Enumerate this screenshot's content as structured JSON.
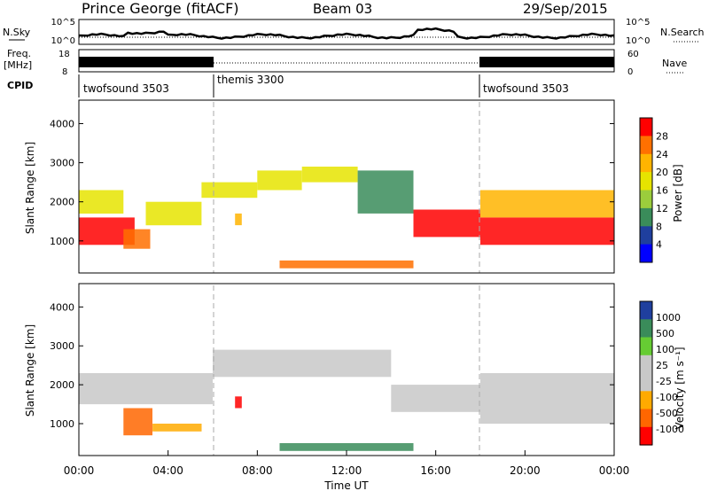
{
  "header": {
    "station": "Prince George (fitACF)",
    "beam": "Beam 03",
    "date": "29/Sep/2015"
  },
  "strips": {
    "nsky_label": "N.Sky",
    "nsky_ticks": [
      "10^5",
      "10^0"
    ],
    "nsearch_label": "N.Search",
    "nsearch_ticks": [
      "10^5",
      "10^0"
    ],
    "freq_label": "Freq.",
    "freq_unit": "[MHz]",
    "freq_ticks": [
      "18",
      "8"
    ],
    "nave_label": "Nave",
    "nave_ticks": [
      "60",
      "0"
    ],
    "cpid_label": "CPID",
    "cpid_modes": [
      {
        "name": "twofsound 3503",
        "start_hour": 0,
        "end_hour": 6
      },
      {
        "name": "themis 3300",
        "start_hour": 6,
        "end_hour": 18
      },
      {
        "name": "twofsound 3503",
        "start_hour": 18,
        "end_hour": 24
      }
    ]
  },
  "chart_data": [
    {
      "type": "heatmap",
      "panel": "power",
      "ylabel": "Slant Range [km]",
      "ylim": [
        180,
        4600
      ],
      "yticks": [
        "1000",
        "2000",
        "3000",
        "4000"
      ],
      "colorbar_label": "Power [dB]",
      "colorbar_ticks": [
        "28",
        "24",
        "20",
        "16",
        "12",
        "8",
        "4"
      ],
      "colorbar_colors": [
        "#ff0000",
        "#ff7000",
        "#ffb400",
        "#e6e400",
        "#9bcd3c",
        "#3a8c5a",
        "#1f3f9e",
        "#0000ff"
      ],
      "echo_bands": [
        {
          "from_hour": 0.0,
          "to_hour": 2.5,
          "range_low_km": 900,
          "range_high_km": 1600,
          "power_db": 28
        },
        {
          "from_hour": 0.0,
          "to_hour": 2.0,
          "range_low_km": 1700,
          "range_high_km": 2300,
          "power_db": 16
        },
        {
          "from_hour": 2.0,
          "to_hour": 3.2,
          "range_low_km": 800,
          "range_high_km": 1300,
          "power_db": 26
        },
        {
          "from_hour": 3.0,
          "to_hour": 5.5,
          "range_low_km": 1400,
          "range_high_km": 2000,
          "power_db": 18
        },
        {
          "from_hour": 5.5,
          "to_hour": 8.0,
          "range_low_km": 2100,
          "range_high_km": 2500,
          "power_db": 18
        },
        {
          "from_hour": 8.0,
          "to_hour": 10.0,
          "range_low_km": 2300,
          "range_high_km": 2800,
          "power_db": 18
        },
        {
          "from_hour": 10.0,
          "to_hour": 12.5,
          "range_low_km": 2500,
          "range_high_km": 2900,
          "power_db": 16
        },
        {
          "from_hour": 12.5,
          "to_hour": 15.0,
          "range_low_km": 1700,
          "range_high_km": 2800,
          "power_db": 10
        },
        {
          "from_hour": 15.0,
          "to_hour": 18.0,
          "range_low_km": 1100,
          "range_high_km": 1800,
          "power_db": 28
        },
        {
          "from_hour": 18.0,
          "to_hour": 24.0,
          "range_low_km": 900,
          "range_high_km": 1600,
          "power_db": 28
        },
        {
          "from_hour": 18.0,
          "to_hour": 24.0,
          "range_low_km": 1600,
          "range_high_km": 2300,
          "power_db": 20
        },
        {
          "from_hour": 7.0,
          "to_hour": 7.3,
          "range_low_km": 1400,
          "range_high_km": 1700,
          "power_db": 22
        },
        {
          "from_hour": 9.0,
          "to_hour": 15.0,
          "range_low_km": 300,
          "range_high_km": 500,
          "power_db": 24
        }
      ]
    },
    {
      "type": "heatmap",
      "panel": "velocity",
      "ylabel": "Slant Range [km]",
      "ylim": [
        180,
        4600
      ],
      "yticks": [
        "1000",
        "2000",
        "3000",
        "4000"
      ],
      "xlabel": "Time UT",
      "xlim": [
        0,
        24
      ],
      "xticks": [
        "00:00",
        "04:00",
        "08:00",
        "12:00",
        "16:00",
        "20:00",
        "00:00"
      ],
      "colorbar_label": "Velocity [m s⁻¹]",
      "colorbar_ticks": [
        "1000",
        "500",
        "100",
        "25",
        "-25",
        "-100",
        "-500",
        "-1000"
      ],
      "colorbar_colors": [
        "#1f3f9e",
        "#3a8c5a",
        "#66cc33",
        "#c8c8c8",
        "#c8c8c8",
        "#ffaa00",
        "#ff6600",
        "#ff0000"
      ],
      "echo_bands": [
        {
          "from_hour": 0.0,
          "to_hour": 6.0,
          "range_low_km": 1500,
          "range_high_km": 2300,
          "velocity": 0
        },
        {
          "from_hour": 2.0,
          "to_hour": 3.3,
          "range_low_km": 700,
          "range_high_km": 1400,
          "velocity": -500
        },
        {
          "from_hour": 3.3,
          "to_hour": 5.5,
          "range_low_km": 800,
          "range_high_km": 1000,
          "velocity": -100
        },
        {
          "from_hour": 6.0,
          "to_hour": 14.0,
          "range_low_km": 2200,
          "range_high_km": 2900,
          "velocity": 0
        },
        {
          "from_hour": 14.0,
          "to_hour": 18.0,
          "range_low_km": 1300,
          "range_high_km": 2000,
          "velocity": 0
        },
        {
          "from_hour": 18.0,
          "to_hour": 24.0,
          "range_low_km": 1000,
          "range_high_km": 2300,
          "velocity": 0
        },
        {
          "from_hour": 7.0,
          "to_hour": 7.3,
          "range_low_km": 1400,
          "range_high_km": 1700,
          "velocity": -1000
        },
        {
          "from_hour": 9.0,
          "to_hour": 15.0,
          "range_low_km": 300,
          "range_high_km": 500,
          "velocity": 100
        }
      ]
    }
  ]
}
